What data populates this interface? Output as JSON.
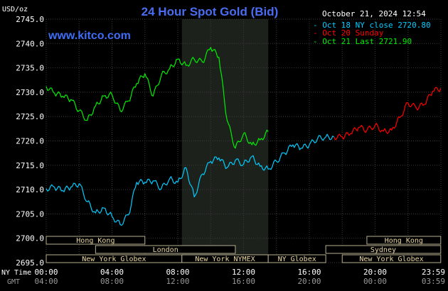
{
  "header": {
    "title": "24 Hour Spot Gold (Bid)",
    "unit": "USD/oz",
    "date_time": "October 21, 2024 12:54",
    "watermark": "www.kitco.com"
  },
  "legend": [
    {
      "text": "- Oct 18 NY close 2720.80",
      "color": "#00ccff"
    },
    {
      "text": "- Oct 20 Sunday",
      "color": "#ff0000"
    },
    {
      "text": "- Oct 21 Last 2721.90",
      "color": "#00ee00"
    }
  ],
  "axis_rows": {
    "ny_label": "NY Time",
    "gmt_label": "GMT",
    "ny_ticks": [
      "00:00",
      "04:00",
      "08:00",
      "12:00",
      "16:00",
      "20:00",
      "23:59"
    ],
    "gmt_ticks": [
      "04:00",
      "08:00",
      "12:00",
      "16:00",
      "20:00",
      "00:00",
      "03:59"
    ]
  },
  "sessions": [
    {
      "label": "Hong Kong",
      "row": 0,
      "start": 0,
      "end": 6
    },
    {
      "label": "Hong Kong",
      "row": 0,
      "start": 19.5,
      "end": 23.99
    },
    {
      "label": "London",
      "row": 1,
      "start": 3,
      "end": 11.5
    },
    {
      "label": "Sydney",
      "row": 1,
      "start": 17,
      "end": 23.99
    },
    {
      "label": "New York Globex",
      "row": 2,
      "start": 0,
      "end": 8.25
    },
    {
      "label": "New York NYMEX",
      "row": 2,
      "start": 8.25,
      "end": 13.5
    },
    {
      "label": "NY Globex",
      "row": 2,
      "start": 13.5,
      "end": 17
    },
    {
      "label": "New York Globex",
      "row": 2,
      "start": 18,
      "end": 23.99
    }
  ],
  "chart_data": {
    "type": "line",
    "title": "24 Hour Spot Gold (Bid)",
    "ylabel": "USD/oz",
    "x_unit": "hours (NY Time)",
    "xlim": [
      0,
      24
    ],
    "ylim": [
      2695,
      2745
    ],
    "yticks": [
      2745,
      2740,
      2735,
      2730,
      2725,
      2720,
      2715,
      2710,
      2705,
      2700,
      2695
    ],
    "nymex_band": [
      8.25,
      13.5
    ],
    "grid": true,
    "series": [
      {
        "name": "Oct 18 NY close 2720.80",
        "color": "#00ccff",
        "x": [
          0,
          0.5,
          1,
          1.5,
          2,
          2.5,
          3,
          3.5,
          4,
          4.5,
          5,
          5.5,
          6,
          6.5,
          7,
          7.5,
          8,
          8.5,
          9,
          9.5,
          10,
          10.5,
          11,
          11.5,
          12,
          12.5,
          13,
          13.5,
          14,
          14.5,
          15,
          15.5,
          16,
          16.5,
          17,
          17.5
        ],
        "values": [
          2710.2,
          2710.5,
          2709.8,
          2710.5,
          2711.2,
          2707.5,
          2705.2,
          2706.2,
          2704.5,
          2702.8,
          2704.8,
          2711.5,
          2711.5,
          2711.8,
          2710.2,
          2712.2,
          2711.5,
          2714.5,
          2708.5,
          2713.2,
          2715.8,
          2716.5,
          2714.5,
          2716.0,
          2715.2,
          2716.8,
          2714.8,
          2714.2,
          2715.8,
          2717.5,
          2719.2,
          2718.5,
          2719.2,
          2720.5,
          2720.8,
          2720.8
        ]
      },
      {
        "name": "Oct 20 Sunday",
        "color": "#ff0000",
        "x": [
          17.5,
          18,
          18.5,
          19,
          19.5,
          20,
          20.5,
          21,
          21.5,
          22,
          22.5,
          23,
          23.5,
          23.99
        ],
        "values": [
          2720.8,
          2720.8,
          2721.5,
          2722.8,
          2722.2,
          2723.2,
          2722.0,
          2722.2,
          2724.8,
          2727.8,
          2726.8,
          2727.5,
          2730.2,
          2730.8
        ]
      },
      {
        "name": "Oct 21 Last 2721.90",
        "color": "#00ee00",
        "x": [
          0,
          0.5,
          1,
          1.5,
          2,
          2.5,
          3,
          3.5,
          4,
          4.5,
          5,
          5.5,
          6,
          6.5,
          7,
          7.5,
          8,
          8.5,
          9,
          9.5,
          10,
          10.5,
          11,
          11.5,
          12,
          12.5,
          13,
          13.5
        ],
        "values": [
          2731.2,
          2729.8,
          2729.2,
          2728.5,
          2726.2,
          2724.2,
          2727.2,
          2729.2,
          2729.5,
          2726.2,
          2728.2,
          2731.8,
          2733.8,
          2729.2,
          2733.5,
          2734.8,
          2736.8,
          2735.5,
          2736.8,
          2736.2,
          2739.2,
          2737.2,
          2724.2,
          2718.5,
          2721.5,
          2719.2,
          2720.2,
          2721.9
        ]
      }
    ]
  }
}
